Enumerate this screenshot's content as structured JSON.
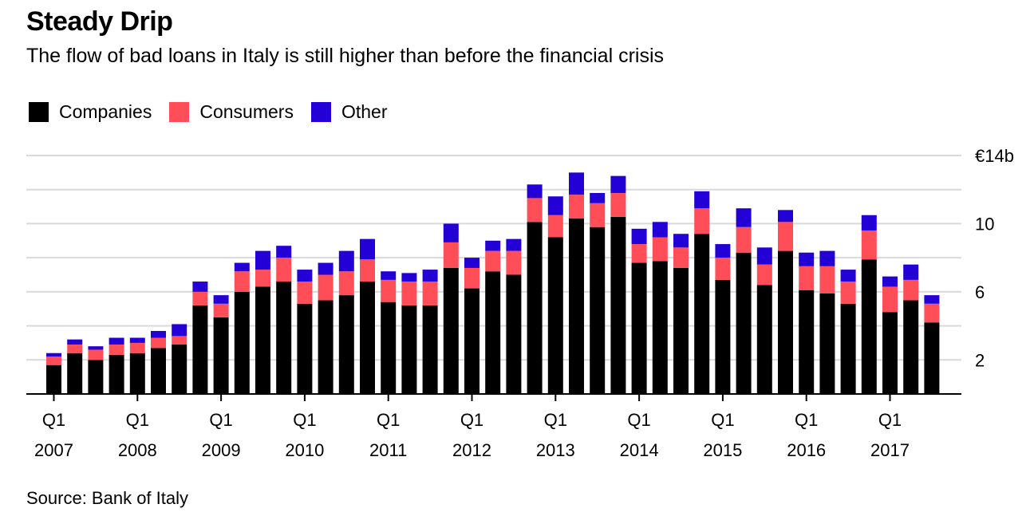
{
  "header": {
    "title": "Steady Drip",
    "subtitle": "The flow of bad loans in Italy is still higher than before the financial crisis"
  },
  "legend": [
    {
      "label": "Companies",
      "color": "#000000"
    },
    {
      "label": "Consumers",
      "color": "#ff4e58"
    },
    {
      "label": "Other",
      "color": "#2300d6"
    }
  ],
  "footer": {
    "source": "Source: Bank of Italy"
  },
  "chart_data": {
    "type": "bar",
    "stacked": true,
    "title": "Steady Drip",
    "subtitle": "The flow of bad loans in Italy is still higher than before the financial crisis",
    "ylim": [
      0,
      14
    ],
    "yticks": [
      2,
      6,
      10,
      14
    ],
    "ytick_labels": [
      "2",
      "6",
      "10",
      "€14b"
    ],
    "y_axis_side": "right",
    "grid": true,
    "legend_position": "top-left",
    "x_tick_labels": [
      {
        "quarter": "Q1",
        "year": "2007",
        "index": 0
      },
      {
        "quarter": "Q1",
        "year": "2008",
        "index": 4
      },
      {
        "quarter": "Q1",
        "year": "2009",
        "index": 8
      },
      {
        "quarter": "Q1",
        "year": "2010",
        "index": 12
      },
      {
        "quarter": "Q1",
        "year": "2011",
        "index": 16
      },
      {
        "quarter": "Q1",
        "year": "2012",
        "index": 20
      },
      {
        "quarter": "Q1",
        "year": "2013",
        "index": 24
      },
      {
        "quarter": "Q1",
        "year": "2014",
        "index": 28
      },
      {
        "quarter": "Q1",
        "year": "2015",
        "index": 32
      },
      {
        "quarter": "Q1",
        "year": "2016",
        "index": 36
      },
      {
        "quarter": "Q1",
        "year": "2017",
        "index": 40
      }
    ],
    "categories": [
      "2007 Q1",
      "2007 Q2",
      "2007 Q3",
      "2007 Q4",
      "2008 Q1",
      "2008 Q2",
      "2008 Q3",
      "2008 Q4",
      "2009 Q1",
      "2009 Q2",
      "2009 Q3",
      "2009 Q4",
      "2010 Q1",
      "2010 Q2",
      "2010 Q3",
      "2010 Q4",
      "2011 Q1",
      "2011 Q2",
      "2011 Q3",
      "2011 Q4",
      "2012 Q1",
      "2012 Q2",
      "2012 Q3",
      "2012 Q4",
      "2013 Q1",
      "2013 Q2",
      "2013 Q3",
      "2013 Q4",
      "2014 Q1",
      "2014 Q2",
      "2014 Q3",
      "2014 Q4",
      "2015 Q1",
      "2015 Q2",
      "2015 Q3",
      "2015 Q4",
      "2016 Q1",
      "2016 Q2",
      "2016 Q3",
      "2016 Q4",
      "2017 Q1",
      "2017 Q2",
      "2017 Q3"
    ],
    "series": [
      {
        "name": "Companies",
        "color": "#000000",
        "values": [
          1.7,
          2.4,
          2.0,
          2.3,
          2.4,
          2.7,
          2.9,
          5.2,
          4.5,
          6.0,
          6.3,
          6.6,
          5.3,
          5.5,
          5.8,
          6.6,
          5.4,
          5.2,
          5.2,
          7.4,
          6.2,
          7.2,
          7.0,
          10.1,
          9.2,
          10.3,
          9.8,
          10.4,
          7.7,
          7.8,
          7.4,
          9.4,
          6.7,
          8.3,
          6.4,
          8.4,
          6.1,
          5.9,
          5.3,
          7.9,
          4.8,
          5.5,
          4.2
        ]
      },
      {
        "name": "Consumers",
        "color": "#ff4e58",
        "values": [
          0.5,
          0.5,
          0.6,
          0.6,
          0.6,
          0.6,
          0.5,
          0.8,
          0.8,
          1.2,
          1.0,
          1.4,
          1.3,
          1.5,
          1.4,
          1.3,
          1.3,
          1.4,
          1.4,
          1.5,
          1.2,
          1.2,
          1.4,
          1.4,
          1.3,
          1.4,
          1.4,
          1.4,
          1.1,
          1.4,
          1.2,
          1.5,
          1.3,
          1.5,
          1.2,
          1.7,
          1.4,
          1.6,
          1.3,
          1.7,
          1.5,
          1.2,
          1.1
        ]
      },
      {
        "name": "Other",
        "color": "#2300d6",
        "values": [
          0.2,
          0.3,
          0.2,
          0.4,
          0.3,
          0.4,
          0.7,
          0.6,
          0.5,
          0.5,
          1.1,
          0.7,
          0.7,
          0.7,
          1.2,
          1.2,
          0.5,
          0.5,
          0.7,
          1.1,
          0.6,
          0.6,
          0.7,
          0.8,
          1.1,
          1.3,
          0.6,
          1.0,
          0.9,
          0.9,
          0.8,
          1.0,
          0.8,
          1.1,
          1.0,
          0.7,
          0.8,
          0.9,
          0.7,
          0.9,
          0.6,
          0.9,
          0.5
        ]
      }
    ]
  }
}
